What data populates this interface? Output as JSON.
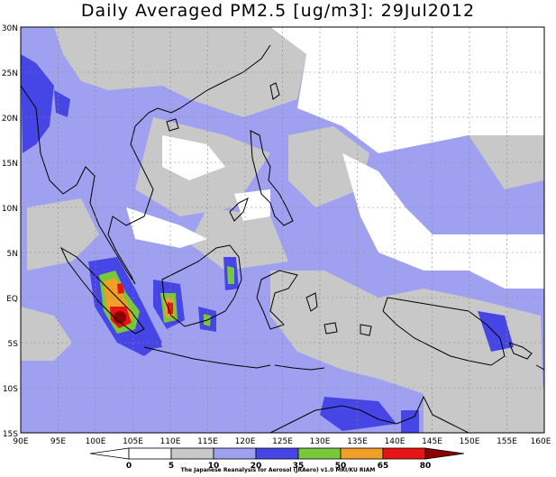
{
  "title": "Daily Averaged PM2.5 [ug/m3]: 29Jul2012",
  "axes": {
    "lat_labels": [
      "30N",
      "25N",
      "20N",
      "15N",
      "10N",
      "5N",
      "EQ",
      "5S",
      "10S",
      "15S"
    ],
    "lon_labels": [
      "90E",
      "95E",
      "100E",
      "105E",
      "110E",
      "115E",
      "120E",
      "125E",
      "130E",
      "135E",
      "140E",
      "145E",
      "150E",
      "155E",
      "160E"
    ],
    "lat_range": [
      -15,
      30
    ],
    "lon_range": [
      90,
      160
    ]
  },
  "colorbar": {
    "levels": [
      "0",
      "5",
      "10",
      "20",
      "35",
      "50",
      "65",
      "80"
    ],
    "colors": [
      "#ffffff",
      "#ffffff",
      "#c8c8c8",
      "#a0a0f0",
      "#4646e6",
      "#78c83c",
      "#f0a028",
      "#e61414",
      "#8c0000"
    ]
  },
  "credit": "The Japanese Reanalysis for Aerosol (JRAero) v1.0 MRI/KU RIAM"
}
